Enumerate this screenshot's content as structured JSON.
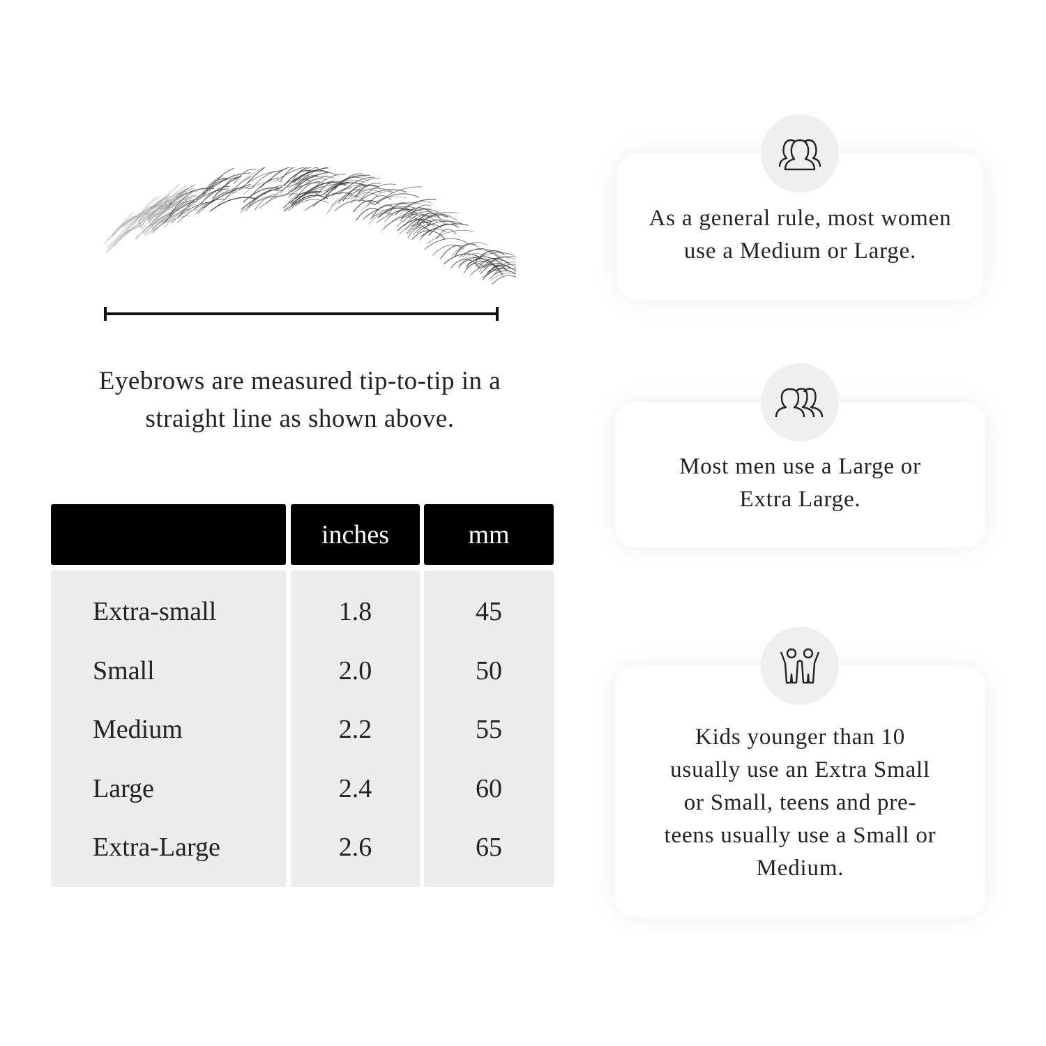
{
  "caption": "Eyebrows are measured tip-to-tip in a straight line as shown above.",
  "table": {
    "headers": [
      "",
      "inches",
      "mm"
    ],
    "rows": [
      {
        "size": "Extra-small",
        "inches": "1.8",
        "mm": "45"
      },
      {
        "size": "Small",
        "inches": "2.0",
        "mm": "50"
      },
      {
        "size": "Medium",
        "inches": "2.2",
        "mm": "55"
      },
      {
        "size": "Large",
        "inches": "2.4",
        "mm": "60"
      },
      {
        "size": "Extra-Large",
        "inches": "2.6",
        "mm": "65"
      }
    ]
  },
  "cards": [
    {
      "icon": "women-group-icon",
      "text": "As a general rule, most women use a Medium or Large."
    },
    {
      "icon": "men-group-icon",
      "text": "Most men use a Large or Extra Large."
    },
    {
      "icon": "kids-icon",
      "text": "Kids younger than 10 usually use an Extra Small or Small, teens and pre-teens usually use a Small or Medium."
    }
  ]
}
